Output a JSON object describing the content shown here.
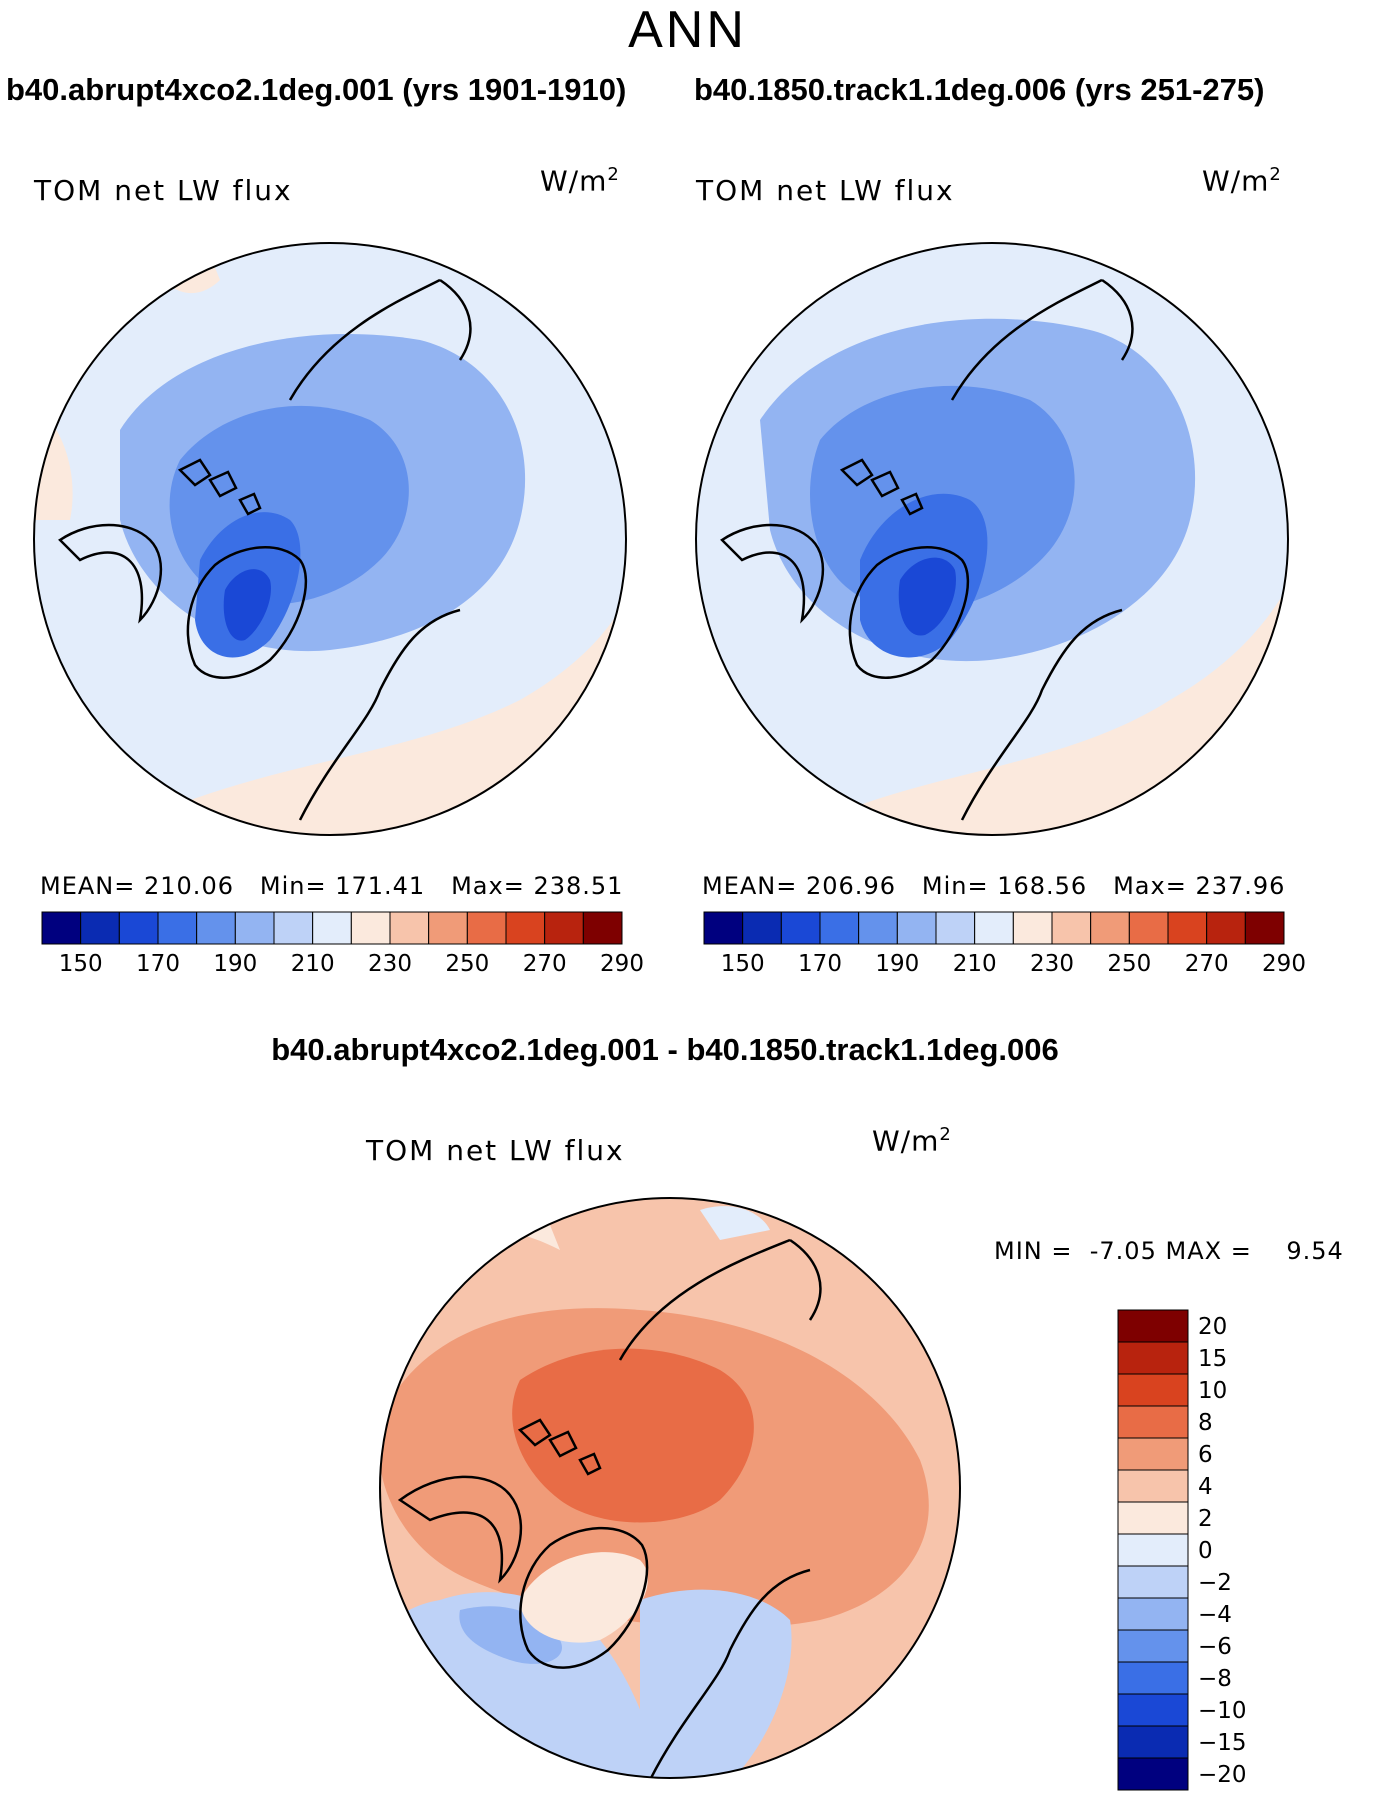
{
  "figure": {
    "season": "ANN",
    "variable_label": "TOM net LW flux",
    "unit_base": "W/m",
    "unit_exp": "2"
  },
  "colors": {
    "abs_scale": [
      "#00007f",
      "#0a2bb2",
      "#1a48d6",
      "#3a6fe6",
      "#6492ec",
      "#93b4f2",
      "#bed2f7",
      "#e3edfb",
      "#fbe9dd",
      "#f7c4ab",
      "#f09b78",
      "#e86c46",
      "#d9431f",
      "#b8230e",
      "#7e0000"
    ],
    "diff_scale": [
      "#00007f",
      "#0a2bb2",
      "#1a48d6",
      "#3a6fe6",
      "#6492ec",
      "#93b4f2",
      "#bed2f7",
      "#e3edfb",
      "#fbe9dd",
      "#f7c4ab",
      "#f09b78",
      "#e86c46",
      "#d9431f",
      "#b8230e",
      "#7e0000"
    ]
  },
  "chart_data": [
    {
      "type": "heatmap",
      "projection": "north-polar-stereographic",
      "title": "b40.abrupt4xco2.1deg.001 (yrs 1901-1910)",
      "variable": "TOM net LW flux",
      "units": "W/m2",
      "mean_label": "MEAN=",
      "mean": "210.06",
      "min_label": "Min=",
      "min": "171.41",
      "max_label": "Max=",
      "max": "238.51",
      "colorbar_ticks": [
        "150",
        "170",
        "190",
        "210",
        "230",
        "250",
        "270",
        "290"
      ],
      "colorbar_levels": [
        140,
        150,
        160,
        170,
        180,
        190,
        200,
        210,
        220,
        230,
        240,
        250,
        260,
        270,
        280,
        290,
        300
      ]
    },
    {
      "type": "heatmap",
      "projection": "north-polar-stereographic",
      "title": "b40.1850.track1.1deg.006 (yrs 251-275)",
      "variable": "TOM net LW flux",
      "units": "W/m2",
      "mean_label": "MEAN=",
      "mean": "206.96",
      "min_label": "Min=",
      "min": "168.56",
      "max_label": "Max=",
      "max": "237.96",
      "colorbar_ticks": [
        "150",
        "170",
        "190",
        "210",
        "230",
        "250",
        "270",
        "290"
      ],
      "colorbar_levels": [
        140,
        150,
        160,
        170,
        180,
        190,
        200,
        210,
        220,
        230,
        240,
        250,
        260,
        270,
        280,
        290,
        300
      ]
    },
    {
      "type": "heatmap",
      "projection": "north-polar-stereographic",
      "title": "b40.abrupt4xco2.1deg.001 - b40.1850.track1.1deg.006",
      "variable": "TOM net LW flux",
      "units": "W/m2",
      "min_label": "MIN =",
      "min": "-7.05",
      "max_label": "MAX =",
      "max": "9.54",
      "colorbar_ticks": [
        "20",
        "15",
        "10",
        "8",
        "6",
        "4",
        "2",
        "0",
        "−2",
        "−4",
        "−6",
        "−8",
        "−10",
        "−15",
        "−20"
      ]
    }
  ]
}
